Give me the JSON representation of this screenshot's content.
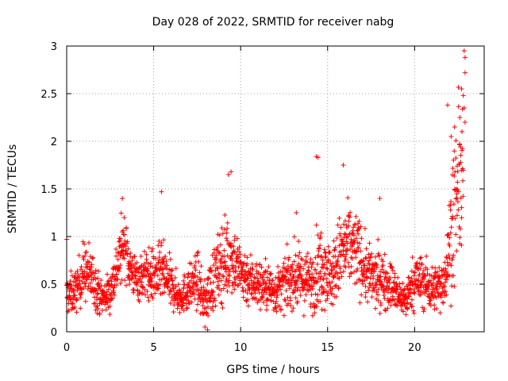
{
  "chart_data": {
    "type": "scatter",
    "title": "Day 028 of 2022, SRMTID for receiver nabg",
    "xlabel": "GPS time / hours",
    "ylabel": "SRMTID / TECUs",
    "xlim": [
      0,
      24
    ],
    "ylim": [
      0,
      3
    ],
    "xticks": [
      0,
      5,
      10,
      15,
      20
    ],
    "xtick_labels": [
      "0",
      "5",
      "10",
      "15",
      "20"
    ],
    "yticks": [
      0,
      0.5,
      1,
      1.5,
      2,
      2.5,
      3
    ],
    "ytick_labels": [
      "0",
      "0.5",
      "1",
      "1.5",
      "2",
      "2.5",
      "3"
    ],
    "grid": true,
    "marker": "+",
    "color": "#ff0000",
    "series": [
      {
        "name": "SRMTID",
        "profile_hours": [
          0.0,
          0.5,
          1.0,
          1.5,
          2.0,
          2.5,
          3.0,
          3.3,
          3.6,
          4.0,
          4.5,
          5.0,
          5.5,
          6.0,
          6.5,
          7.0,
          7.5,
          7.9,
          8.3,
          9.0,
          9.5,
          10.0,
          10.5,
          11.0,
          11.5,
          12.0,
          12.5,
          13.0,
          13.5,
          14.0,
          14.4,
          14.8,
          15.2,
          15.7,
          16.2,
          16.7,
          17.2,
          17.7,
          18.2,
          18.7,
          19.0,
          19.5,
          20.0,
          20.5,
          21.0,
          21.5,
          21.8,
          22.0,
          22.3,
          22.6,
          22.8
        ],
        "profile_median": [
          0.38,
          0.42,
          0.65,
          0.55,
          0.35,
          0.42,
          0.75,
          0.95,
          0.7,
          0.55,
          0.6,
          0.58,
          0.62,
          0.48,
          0.36,
          0.45,
          0.55,
          0.3,
          0.5,
          0.75,
          0.8,
          0.62,
          0.55,
          0.5,
          0.48,
          0.42,
          0.5,
          0.58,
          0.55,
          0.52,
          0.65,
          0.72,
          0.55,
          0.8,
          0.9,
          0.85,
          0.62,
          0.55,
          0.55,
          0.48,
          0.38,
          0.35,
          0.55,
          0.52,
          0.45,
          0.48,
          0.62,
          0.9,
          1.3,
          1.6,
          1.55
        ],
        "profile_spread": [
          0.15,
          0.15,
          0.22,
          0.2,
          0.12,
          0.15,
          0.22,
          0.22,
          0.18,
          0.16,
          0.18,
          0.2,
          0.22,
          0.18,
          0.12,
          0.16,
          0.2,
          0.14,
          0.22,
          0.3,
          0.28,
          0.22,
          0.2,
          0.18,
          0.18,
          0.16,
          0.18,
          0.22,
          0.22,
          0.2,
          0.3,
          0.3,
          0.22,
          0.3,
          0.3,
          0.28,
          0.22,
          0.22,
          0.2,
          0.18,
          0.14,
          0.12,
          0.2,
          0.2,
          0.16,
          0.18,
          0.22,
          0.35,
          0.55,
          0.55,
          0.55
        ],
        "peaks": [
          {
            "x": 9.45,
            "y": 1.68
          },
          {
            "x": 9.3,
            "y": 1.65
          },
          {
            "x": 14.35,
            "y": 1.84
          },
          {
            "x": 14.45,
            "y": 1.83
          },
          {
            "x": 15.9,
            "y": 1.75
          },
          {
            "x": 5.45,
            "y": 1.47
          },
          {
            "x": 3.2,
            "y": 1.4
          },
          {
            "x": 22.85,
            "y": 2.95
          },
          {
            "x": 22.9,
            "y": 2.88
          },
          {
            "x": 22.9,
            "y": 2.72
          },
          {
            "x": 22.7,
            "y": 2.55
          },
          {
            "x": 22.8,
            "y": 2.48
          },
          {
            "x": 21.9,
            "y": 2.38
          },
          {
            "x": 22.85,
            "y": 2.35
          },
          {
            "x": 22.6,
            "y": 2.25
          },
          {
            "x": 22.3,
            "y": 2.15
          },
          {
            "x": 22.1,
            "y": 2.05
          },
          {
            "x": 22.9,
            "y": 2.2
          },
          {
            "x": 8.1,
            "y": 0.02
          },
          {
            "x": 7.95,
            "y": 0.05
          },
          {
            "x": 0.0,
            "y": 0.97
          },
          {
            "x": 18.0,
            "y": 1.4
          },
          {
            "x": 13.2,
            "y": 1.25
          },
          {
            "x": 19.5,
            "y": 0.18
          }
        ]
      }
    ]
  }
}
